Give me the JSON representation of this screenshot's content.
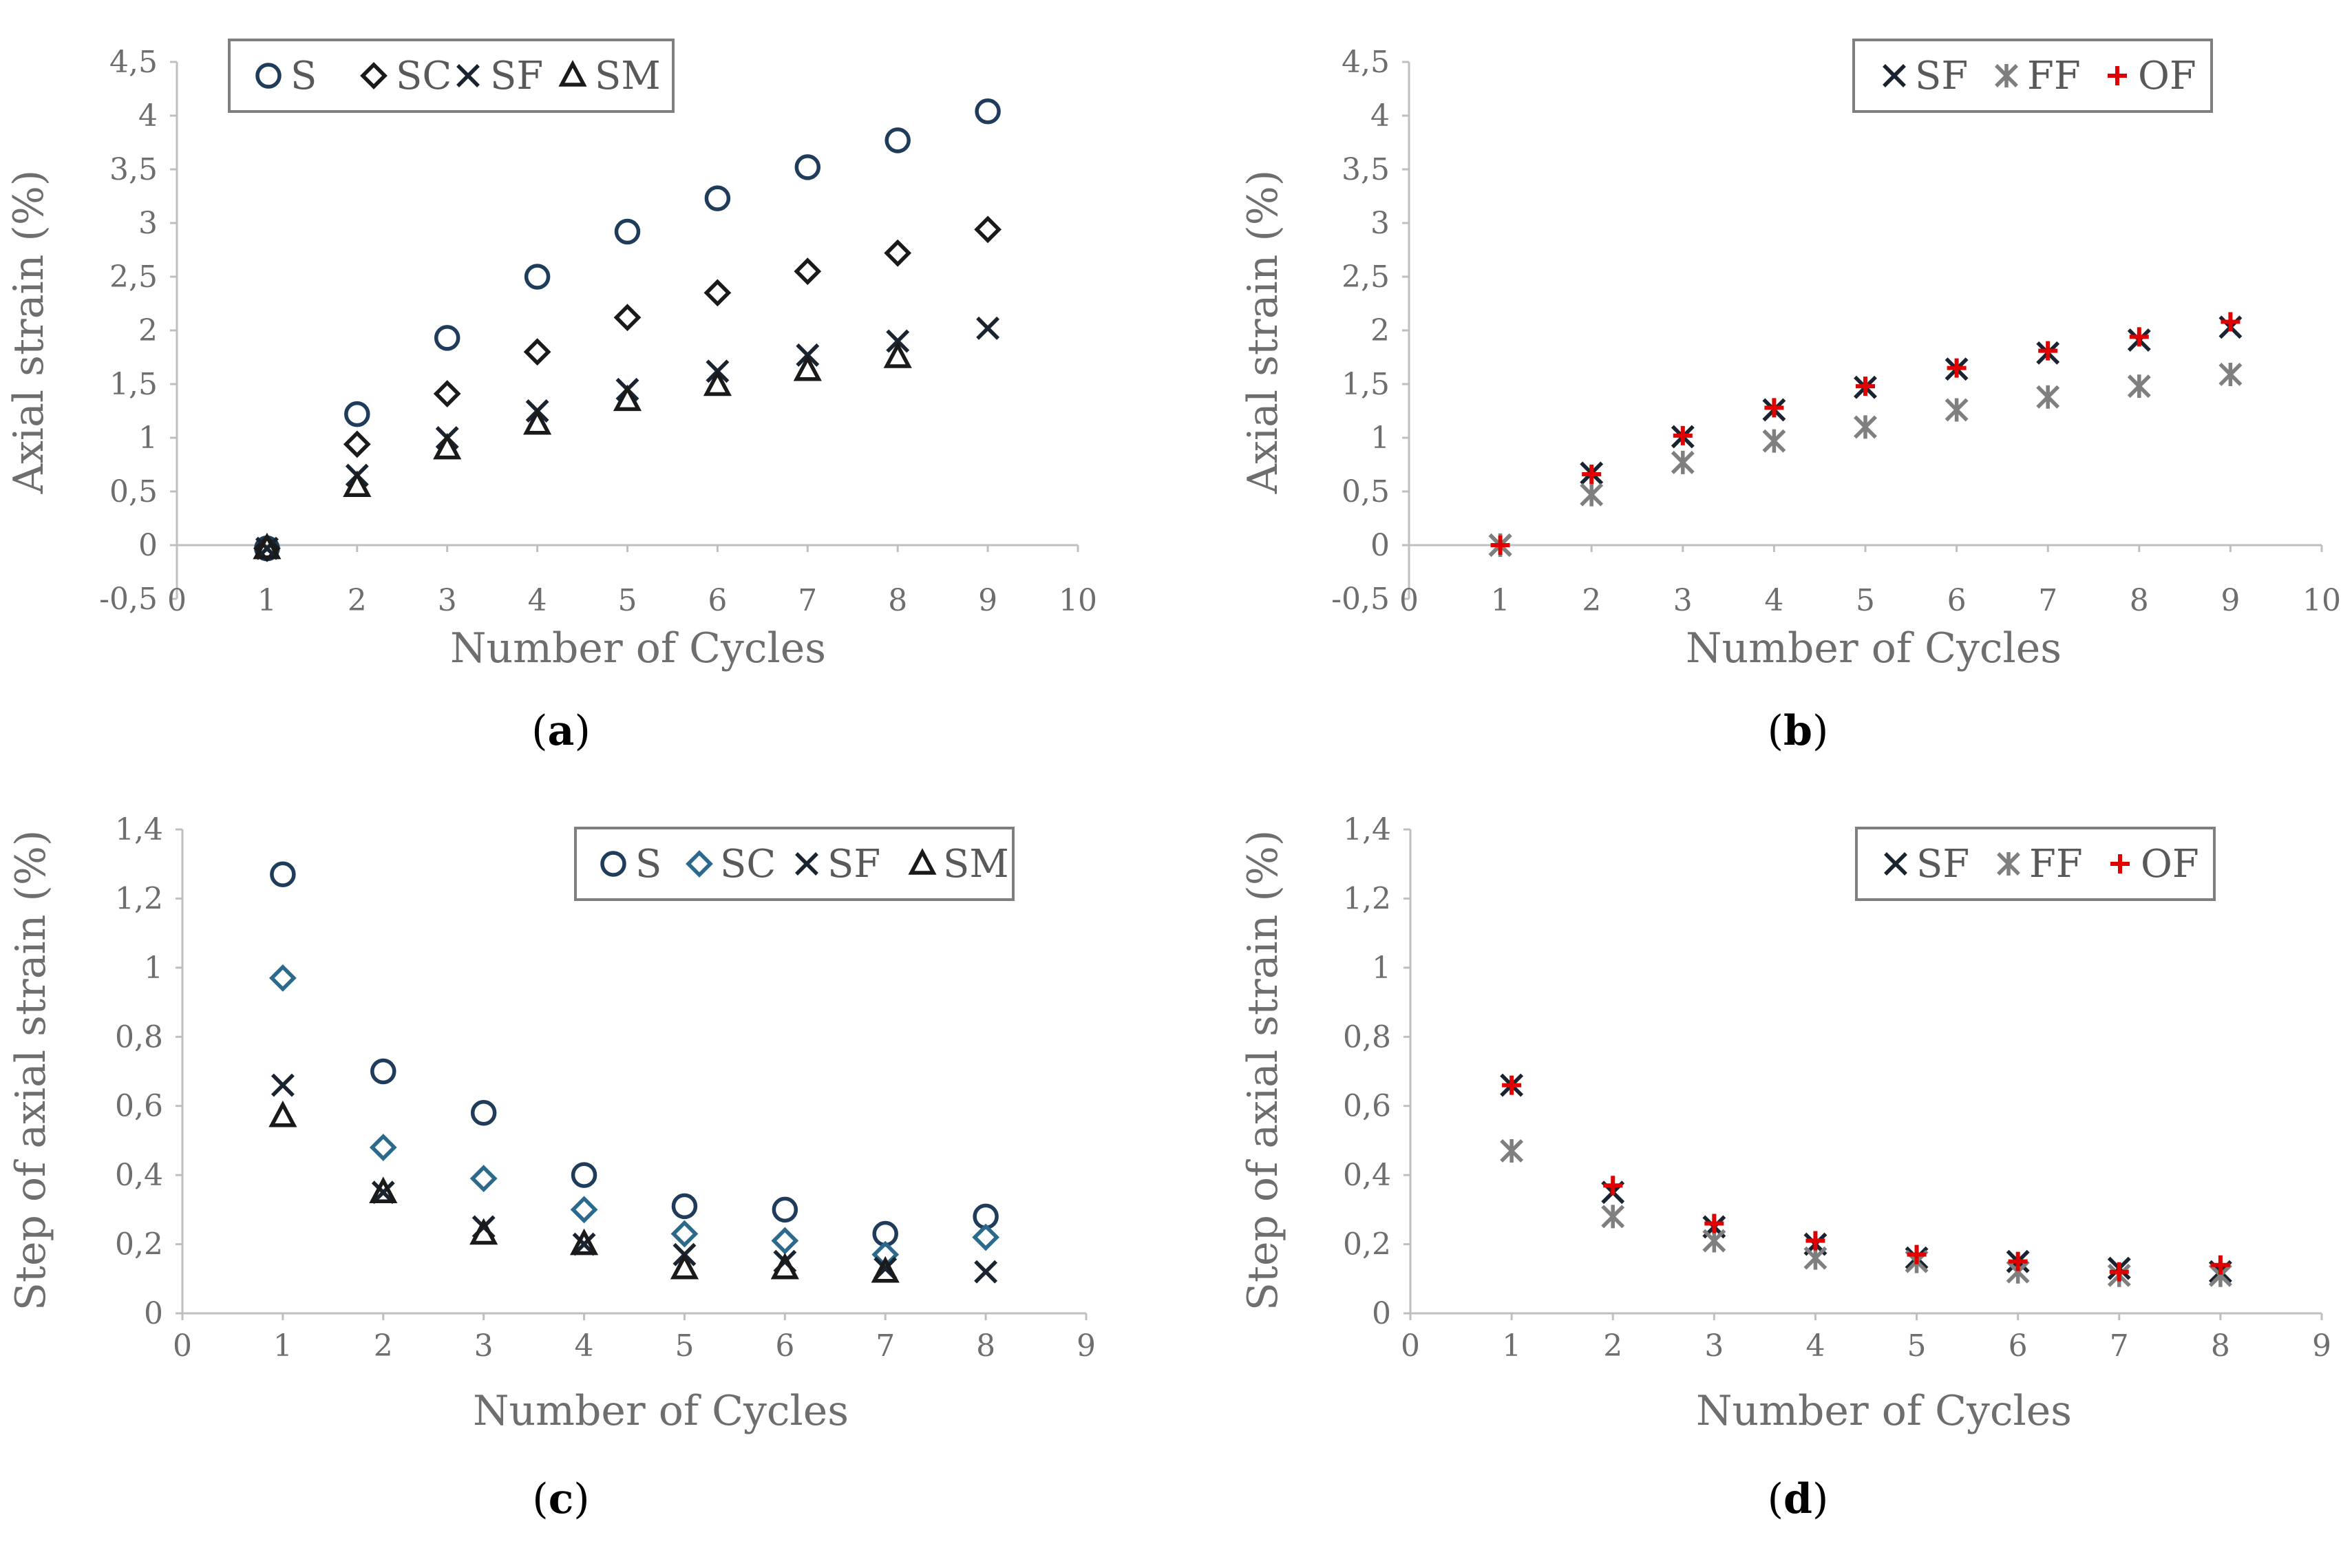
{
  "colors": {
    "S": "#1f3c5a",
    "SC_a": "#1a1a1a",
    "SC_c": "#2b6a8c",
    "SF": "#1a2330",
    "SM": "#1a1a1a",
    "FF": "#7f7f7f",
    "OF": "#e00000",
    "axis": "#bfbfbf",
    "text": "#6e6e6e"
  },
  "chart_data": [
    {
      "panel": "a",
      "caption": "(a)",
      "caption_letter": "a",
      "type": "scatter",
      "xlabel": "Number of Cycles",
      "ylabel": "Axial strain (%)",
      "xlim": [
        0,
        10
      ],
      "ylim": [
        -0.5,
        4.5
      ],
      "xticks": [
        0,
        1,
        2,
        3,
        4,
        5,
        6,
        7,
        8,
        9,
        10
      ],
      "yticks": [
        -0.5,
        0,
        0.5,
        1,
        1.5,
        2,
        2.5,
        3,
        3.5,
        4,
        4.5
      ],
      "xtick_labels": [
        "0",
        "1",
        "2",
        "3",
        "4",
        "5",
        "6",
        "7",
        "8",
        "9",
        "10"
      ],
      "ytick_labels": [
        "-0,5",
        "0",
        "0,5",
        "1",
        "1,5",
        "2",
        "2,5",
        "3",
        "3,5",
        "4",
        "4,5"
      ],
      "legend_position": "top-left",
      "series": [
        {
          "name": "S",
          "marker": "circle",
          "color_key": "S",
          "x": [
            1,
            2,
            3,
            4,
            5,
            6,
            7,
            8,
            9
          ],
          "y": [
            -0.03,
            1.22,
            1.93,
            2.5,
            2.92,
            3.23,
            3.52,
            3.77,
            4.04
          ]
        },
        {
          "name": "SC",
          "marker": "diamond",
          "color_key": "SC_a",
          "x": [
            1,
            2,
            3,
            4,
            5,
            6,
            7,
            8,
            9
          ],
          "y": [
            -0.03,
            0.94,
            1.41,
            1.8,
            2.12,
            2.35,
            2.55,
            2.72,
            2.94
          ]
        },
        {
          "name": "SF",
          "marker": "x",
          "color_key": "SF",
          "x": [
            1,
            2,
            3,
            4,
            5,
            6,
            7,
            8,
            9
          ],
          "y": [
            -0.03,
            0.65,
            1.0,
            1.25,
            1.45,
            1.62,
            1.77,
            1.9,
            2.02
          ]
        },
        {
          "name": "SM",
          "marker": "triangle",
          "color_key": "SM",
          "x": [
            1,
            2,
            3,
            4,
            5,
            6,
            7,
            8
          ],
          "y": [
            -0.03,
            0.55,
            0.9,
            1.13,
            1.35,
            1.49,
            1.63,
            1.75
          ]
        }
      ]
    },
    {
      "panel": "b",
      "caption": "(b)",
      "caption_letter": "b",
      "type": "scatter",
      "xlabel": "Number of Cycles",
      "ylabel": "Axial strain (%)",
      "xlim": [
        0,
        10
      ],
      "ylim": [
        -0.5,
        4.5
      ],
      "xticks": [
        0,
        1,
        2,
        3,
        4,
        5,
        6,
        7,
        8,
        9,
        10
      ],
      "yticks": [
        -0.5,
        0,
        0.5,
        1,
        1.5,
        2,
        2.5,
        3,
        3.5,
        4,
        4.5
      ],
      "xtick_labels": [
        "0",
        "1",
        "2",
        "3",
        "4",
        "5",
        "6",
        "7",
        "8",
        "9",
        "10"
      ],
      "ytick_labels": [
        "-0,5",
        "0",
        "0,5",
        "1",
        "1,5",
        "2",
        "2,5",
        "3",
        "3,5",
        "4",
        "4,5"
      ],
      "legend_position": "top-right",
      "series": [
        {
          "name": "SF",
          "marker": "x",
          "color_key": "SF",
          "x": [
            1,
            2,
            3,
            4,
            5,
            6,
            7,
            8,
            9
          ],
          "y": [
            0,
            0.67,
            1.01,
            1.26,
            1.47,
            1.64,
            1.79,
            1.91,
            2.03
          ]
        },
        {
          "name": "FF",
          "marker": "asterisk",
          "color_key": "FF",
          "x": [
            1,
            2,
            3,
            4,
            5,
            6,
            7,
            8,
            9
          ],
          "y": [
            0,
            0.47,
            0.77,
            0.97,
            1.1,
            1.26,
            1.38,
            1.48,
            1.59
          ]
        },
        {
          "name": "OF",
          "marker": "plus",
          "color_key": "OF",
          "x": [
            1,
            2,
            3,
            4,
            5,
            6,
            7,
            8,
            9
          ],
          "y": [
            0,
            0.66,
            1.02,
            1.28,
            1.48,
            1.65,
            1.81,
            1.94,
            2.08
          ]
        }
      ]
    },
    {
      "panel": "c",
      "caption": "(c)",
      "caption_letter": "c",
      "type": "scatter",
      "xlabel": "Number of Cycles",
      "ylabel": "Step of axial strain (%)",
      "xlim": [
        0,
        9
      ],
      "ylim": [
        0,
        1.4
      ],
      "xticks": [
        0,
        1,
        2,
        3,
        4,
        5,
        6,
        7,
        8,
        9
      ],
      "yticks": [
        0,
        0.2,
        0.4,
        0.6,
        0.8,
        1,
        1.2,
        1.4
      ],
      "xtick_labels": [
        "0",
        "1",
        "2",
        "3",
        "4",
        "5",
        "6",
        "7",
        "8",
        "9"
      ],
      "ytick_labels": [
        "0",
        "0,2",
        "0,4",
        "0,6",
        "0,8",
        "1",
        "1,2",
        "1,4"
      ],
      "legend_position": "top-right",
      "series": [
        {
          "name": "S",
          "marker": "circle",
          "color_key": "S",
          "x": [
            1,
            2,
            3,
            4,
            5,
            6,
            7,
            8
          ],
          "y": [
            1.27,
            0.7,
            0.58,
            0.4,
            0.31,
            0.3,
            0.23,
            0.28
          ]
        },
        {
          "name": "SC",
          "marker": "diamond",
          "color_key": "SC_c",
          "x": [
            1,
            2,
            3,
            4,
            5,
            6,
            7,
            8
          ],
          "y": [
            0.97,
            0.48,
            0.39,
            0.3,
            0.23,
            0.21,
            0.17,
            0.22
          ]
        },
        {
          "name": "SF",
          "marker": "x",
          "color_key": "SF",
          "x": [
            1,
            2,
            3,
            4,
            5,
            6,
            7,
            8
          ],
          "y": [
            0.66,
            0.35,
            0.25,
            0.2,
            0.17,
            0.15,
            0.13,
            0.12
          ]
        },
        {
          "name": "SM",
          "marker": "triangle",
          "color_key": "SM",
          "x": [
            1,
            2,
            3,
            4,
            5,
            6,
            7
          ],
          "y": [
            0.57,
            0.35,
            0.23,
            0.2,
            0.13,
            0.13,
            0.12
          ]
        }
      ]
    },
    {
      "panel": "d",
      "caption": "(d)",
      "caption_letter": "d",
      "type": "scatter",
      "xlabel": "Number of Cycles",
      "ylabel": "Step of axial strain (%)",
      "xlim": [
        0,
        9
      ],
      "ylim": [
        0,
        1.4
      ],
      "xticks": [
        0,
        1,
        2,
        3,
        4,
        5,
        6,
        7,
        8,
        9
      ],
      "yticks": [
        0,
        0.2,
        0.4,
        0.6,
        0.8,
        1,
        1.2,
        1.4
      ],
      "xtick_labels": [
        "0",
        "1",
        "2",
        "3",
        "4",
        "5",
        "6",
        "7",
        "8",
        "9"
      ],
      "ytick_labels": [
        "0",
        "0,2",
        "0,4",
        "0,6",
        "0,8",
        "1",
        "1,2",
        "1,4"
      ],
      "legend_position": "top-right",
      "series": [
        {
          "name": "SF",
          "marker": "x",
          "color_key": "SF",
          "x": [
            1,
            2,
            3,
            4,
            5,
            6,
            7,
            8
          ],
          "y": [
            0.66,
            0.35,
            0.25,
            0.2,
            0.16,
            0.15,
            0.13,
            0.12
          ]
        },
        {
          "name": "FF",
          "marker": "asterisk",
          "color_key": "FF",
          "x": [
            1,
            2,
            3,
            4,
            5,
            6,
            7,
            8
          ],
          "y": [
            0.47,
            0.28,
            0.21,
            0.16,
            0.15,
            0.12,
            0.11,
            0.11
          ]
        },
        {
          "name": "OF",
          "marker": "plus",
          "color_key": "OF",
          "x": [
            1,
            2,
            3,
            4,
            5,
            6,
            7,
            8
          ],
          "y": [
            0.66,
            0.37,
            0.26,
            0.21,
            0.17,
            0.15,
            0.12,
            0.14
          ]
        }
      ]
    }
  ]
}
